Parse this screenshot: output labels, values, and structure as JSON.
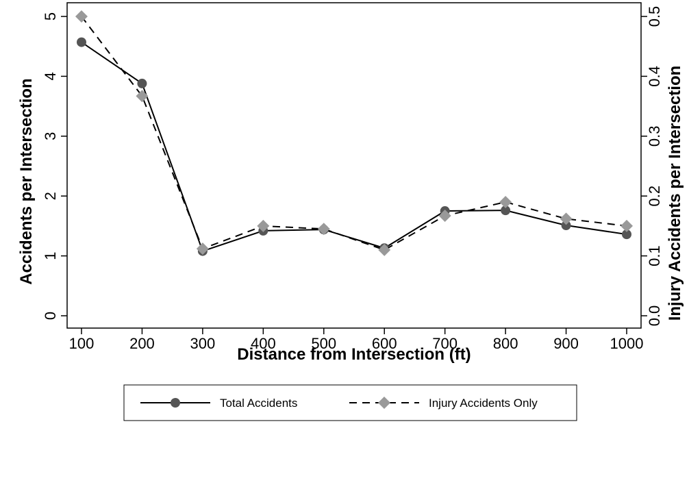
{
  "chart_data": {
    "type": "line",
    "title": "",
    "xlabel": "Distance from Intersection (ft)",
    "ylabel": "Accidents per Intersection",
    "y2label": "Injury Accidents per Intersection",
    "x": [
      100,
      200,
      300,
      400,
      500,
      600,
      700,
      800,
      900,
      1000
    ],
    "xticks": [
      "100",
      "200",
      "300",
      "400",
      "500",
      "600",
      "700",
      "800",
      "900",
      "1000"
    ],
    "ylim": [
      0,
      5
    ],
    "yticks": [
      "0",
      "1",
      "2",
      "3",
      "4",
      "5"
    ],
    "y2lim": [
      0,
      0.5
    ],
    "y2ticks": [
      "0.0",
      "0.1",
      "0.2",
      "0.3",
      "0.4",
      "0.5"
    ],
    "series": [
      {
        "name": "Total Accidents",
        "axis": "left",
        "marker": "circle",
        "line": "solid",
        "color": "#555555",
        "values": [
          4.57,
          3.88,
          1.08,
          1.42,
          1.44,
          1.13,
          1.75,
          1.76,
          1.51,
          1.36
        ]
      },
      {
        "name": "Injury Accidents Only",
        "axis": "right",
        "marker": "diamond",
        "line": "dashed",
        "color": "#999999",
        "values": [
          0.5,
          0.367,
          0.112,
          0.15,
          0.145,
          0.11,
          0.167,
          0.19,
          0.162,
          0.15
        ]
      }
    ],
    "grid": false,
    "legend_position": "bottom"
  }
}
